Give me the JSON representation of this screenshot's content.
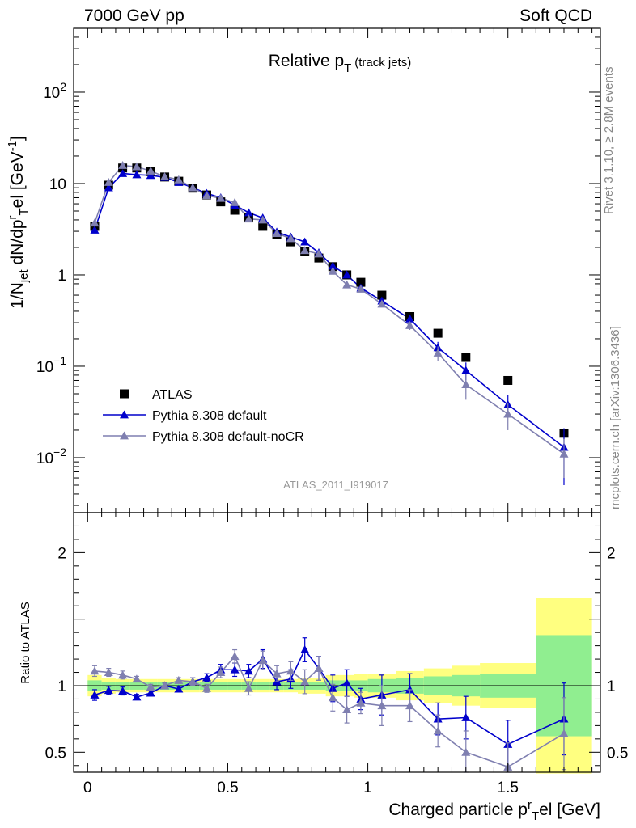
{
  "header": {
    "left": "7000 GeV pp",
    "right": "Soft QCD"
  },
  "side_labels": {
    "rivet": "Rivet 3.1.10, ≥ 2.8M events",
    "mcplots": "mcplots.cern.ch [arXiv:1306.3436]"
  },
  "chart_data": {
    "type": "scatter",
    "title": {
      "main": "Relative p",
      "sub": "T",
      "suffix": " (track jets)"
    },
    "analysis_label": "ATLAS_2011_I919017",
    "xlabel": {
      "pre": "Charged particle p",
      "sup": "r",
      "sub": "T",
      "post": "el [GeV]"
    },
    "ylabel": {
      "a": "1/N",
      "a_sub": "jet",
      "b": " dN/dp",
      "b_sup": "r",
      "b_sub": "T",
      "c": "el [GeV",
      "c_sup": "-1",
      "d": "]"
    },
    "ratio_ylabel": "Ratio to ATLAS",
    "xlim": [
      -0.05,
      1.83
    ],
    "ylim": [
      0.0025,
      500
    ],
    "yscale": "log",
    "ratio_ylim": [
      0.35,
      2.3
    ],
    "x_ticks": [
      "0",
      "0.5",
      "1",
      "1.5"
    ],
    "x_tick_values": [
      0,
      0.5,
      1,
      1.5
    ],
    "y_ticks": [
      {
        "value": 100,
        "base": "10",
        "exp": "2"
      },
      {
        "value": 10,
        "base": "10",
        "exp": ""
      },
      {
        "value": 1,
        "base": "1",
        "exp": ""
      },
      {
        "value": 0.1,
        "base": "10",
        "exp": "−1"
      },
      {
        "value": 0.01,
        "base": "10",
        "exp": "−2"
      }
    ],
    "ratio_ticks": [
      {
        "value": 2,
        "label": "2"
      },
      {
        "value": 1,
        "label": "1"
      },
      {
        "value": 0.5,
        "label": "0.5"
      }
    ],
    "legend_position": "lower-left",
    "series": [
      {
        "name": "ATLAS",
        "marker": "square",
        "color": "#000000",
        "x": [
          0.025,
          0.075,
          0.125,
          0.175,
          0.225,
          0.275,
          0.325,
          0.375,
          0.425,
          0.475,
          0.525,
          0.575,
          0.625,
          0.675,
          0.725,
          0.775,
          0.825,
          0.875,
          0.925,
          0.975,
          1.05,
          1.15,
          1.25,
          1.35,
          1.5,
          1.7
        ],
        "y": [
          3.4,
          9.6,
          14.8,
          14.8,
          13.5,
          11.8,
          10.6,
          8.9,
          7.5,
          6.3,
          5.1,
          4.3,
          3.4,
          2.75,
          2.3,
          1.8,
          1.53,
          1.23,
          1.0,
          0.83,
          0.6,
          0.35,
          0.23,
          0.125,
          0.07,
          0.0185
        ]
      },
      {
        "name": "Pythia 8.308 default",
        "marker": "triangle",
        "color": "#0000cc",
        "x": [
          0.025,
          0.075,
          0.125,
          0.175,
          0.225,
          0.275,
          0.325,
          0.375,
          0.425,
          0.475,
          0.525,
          0.575,
          0.625,
          0.675,
          0.725,
          0.775,
          0.825,
          0.875,
          0.925,
          0.975,
          1.05,
          1.15,
          1.25,
          1.35,
          1.5,
          1.7
        ],
        "y": [
          3.1,
          9.0,
          12.9,
          12.5,
          12.3,
          11.7,
          10.3,
          9.0,
          7.8,
          7.0,
          5.8,
          4.8,
          4.2,
          2.95,
          2.6,
          2.3,
          1.75,
          1.25,
          1.0,
          0.72,
          0.52,
          0.33,
          0.16,
          0.09,
          0.038,
          0.013
        ],
        "yerr": [
          0.05,
          0.15,
          0.2,
          0.2,
          0.2,
          0.2,
          0.15,
          0.15,
          0.12,
          0.12,
          0.1,
          0.1,
          0.08,
          0.06,
          0.05,
          0.05,
          0.04,
          0.04,
          0.04,
          0.03,
          0.03,
          0.03,
          0.025,
          0.02,
          0.01,
          0.008
        ]
      },
      {
        "name": "Pythia 8.308 default-noCR",
        "marker": "triangle",
        "color": "#7f7fb0",
        "x": [
          0.025,
          0.075,
          0.125,
          0.175,
          0.225,
          0.275,
          0.325,
          0.375,
          0.425,
          0.475,
          0.525,
          0.575,
          0.625,
          0.675,
          0.725,
          0.775,
          0.825,
          0.875,
          0.925,
          0.975,
          1.05,
          1.15,
          1.25,
          1.35,
          1.5,
          1.7
        ],
        "y": [
          3.7,
          10.3,
          15.8,
          15.3,
          13.7,
          11.9,
          11.0,
          9.0,
          7.4,
          6.9,
          6.2,
          4.1,
          4.0,
          2.85,
          2.5,
          1.85,
          1.7,
          1.1,
          0.78,
          0.7,
          0.48,
          0.28,
          0.14,
          0.063,
          0.03,
          0.011
        ],
        "yerr": [
          0.05,
          0.15,
          0.2,
          0.2,
          0.2,
          0.2,
          0.15,
          0.15,
          0.12,
          0.12,
          0.1,
          0.1,
          0.08,
          0.06,
          0.05,
          0.05,
          0.04,
          0.04,
          0.04,
          0.03,
          0.03,
          0.03,
          0.025,
          0.02,
          0.01,
          0.005
        ]
      }
    ],
    "ratio": {
      "bins": [
        [
          0,
          0.05
        ],
        [
          0.05,
          0.1
        ],
        [
          0.1,
          0.15
        ],
        [
          0.15,
          0.2
        ],
        [
          0.2,
          0.25
        ],
        [
          0.25,
          0.3
        ],
        [
          0.3,
          0.35
        ],
        [
          0.35,
          0.4
        ],
        [
          0.4,
          0.45
        ],
        [
          0.45,
          0.5
        ],
        [
          0.5,
          0.55
        ],
        [
          0.55,
          0.6
        ],
        [
          0.6,
          0.65
        ],
        [
          0.65,
          0.7
        ],
        [
          0.7,
          0.75
        ],
        [
          0.75,
          0.8
        ],
        [
          0.8,
          0.85
        ],
        [
          0.85,
          0.9
        ],
        [
          0.9,
          0.95
        ],
        [
          0.95,
          1.0
        ],
        [
          1.0,
          1.1
        ],
        [
          1.1,
          1.2
        ],
        [
          1.2,
          1.3
        ],
        [
          1.3,
          1.4
        ],
        [
          1.4,
          1.6
        ],
        [
          1.6,
          1.8
        ]
      ],
      "stat_band": [
        0.04,
        0.03,
        0.03,
        0.03,
        0.03,
        0.03,
        0.03,
        0.03,
        0.03,
        0.03,
        0.03,
        0.03,
        0.03,
        0.03,
        0.03,
        0.03,
        0.03,
        0.04,
        0.04,
        0.04,
        0.05,
        0.06,
        0.07,
        0.08,
        0.09,
        0.38
      ],
      "total_band": [
        0.08,
        0.06,
        0.05,
        0.05,
        0.05,
        0.05,
        0.05,
        0.05,
        0.05,
        0.05,
        0.05,
        0.05,
        0.05,
        0.05,
        0.05,
        0.06,
        0.06,
        0.08,
        0.08,
        0.09,
        0.09,
        0.11,
        0.13,
        0.15,
        0.17,
        0.66
      ],
      "series": [
        {
          "name": "Pythia 8.308 default",
          "y": [
            0.93,
            0.965,
            0.96,
            0.915,
            0.945,
            1.0,
            0.975,
            1.03,
            1.06,
            1.12,
            1.12,
            1.11,
            1.2,
            1.03,
            1.05,
            1.27,
            1.13,
            0.98,
            1.02,
            0.9,
            0.93,
            0.97,
            0.75,
            0.76,
            0.56,
            0.75
          ],
          "yerr": [
            0.04,
            0.03,
            0.03,
            0.02,
            0.02,
            0.02,
            0.02,
            0.03,
            0.03,
            0.04,
            0.05,
            0.05,
            0.07,
            0.06,
            0.07,
            0.09,
            0.09,
            0.1,
            0.1,
            0.08,
            0.15,
            0.12,
            0.12,
            0.16,
            0.18,
            0.27
          ]
        },
        {
          "name": "Pythia 8.308 default-noCR",
          "y": [
            1.11,
            1.1,
            1.08,
            1.05,
            0.99,
            1.0,
            1.04,
            1.03,
            0.98,
            1.1,
            1.22,
            0.98,
            1.19,
            1.09,
            1.11,
            1.03,
            1.13,
            0.91,
            0.82,
            0.87,
            0.85,
            0.85,
            0.66,
            0.5,
            0.39,
            0.64
          ],
          "yerr": [
            0.04,
            0.03,
            0.03,
            0.02,
            0.02,
            0.02,
            0.02,
            0.03,
            0.03,
            0.04,
            0.05,
            0.05,
            0.07,
            0.06,
            0.07,
            0.09,
            0.09,
            0.1,
            0.1,
            0.08,
            0.15,
            0.12,
            0.12,
            0.16,
            0.18,
            0.27
          ]
        }
      ]
    }
  }
}
